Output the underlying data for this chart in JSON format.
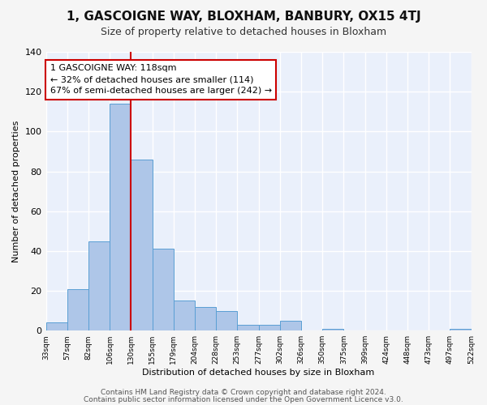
{
  "title": "1, GASCOIGNE WAY, BLOXHAM, BANBURY, OX15 4TJ",
  "subtitle": "Size of property relative to detached houses in Bloxham",
  "xlabel": "Distribution of detached houses by size in Bloxham",
  "ylabel": "Number of detached properties",
  "bar_color": "#aec6e8",
  "bar_edge_color": "#5a9fd4",
  "bg_color": "#eaf0fb",
  "grid_color": "#ffffff",
  "bin_labels": [
    "33sqm",
    "57sqm",
    "82sqm",
    "106sqm",
    "130sqm",
    "155sqm",
    "179sqm",
    "204sqm",
    "228sqm",
    "253sqm",
    "277sqm",
    "302sqm",
    "326sqm",
    "350sqm",
    "375sqm",
    "399sqm",
    "424sqm",
    "448sqm",
    "473sqm",
    "497sqm",
    "522sqm"
  ],
  "values": [
    4,
    21,
    45,
    114,
    86,
    41,
    15,
    12,
    10,
    3,
    3,
    5,
    0,
    1,
    0,
    0,
    0,
    0,
    0,
    1
  ],
  "property_bin_index": 3,
  "annotation_line1": "1 GASCOIGNE WAY: 118sqm",
  "annotation_line2": "← 32% of detached houses are smaller (114)",
  "annotation_line3": "67% of semi-detached houses are larger (242) →",
  "annotation_box_color": "#ffffff",
  "annotation_border_color": "#cc0000",
  "red_line_color": "#cc0000",
  "footer1": "Contains HM Land Registry data © Crown copyright and database right 2024.",
  "footer2": "Contains public sector information licensed under the Open Government Licence v3.0.",
  "ylim": [
    0,
    140
  ],
  "yticks": [
    0,
    20,
    40,
    60,
    80,
    100,
    120,
    140
  ],
  "title_fontsize": 11,
  "subtitle_fontsize": 9,
  "annotation_fontsize": 8,
  "footer_fontsize": 6.5,
  "fig_bg_color": "#f5f5f5"
}
